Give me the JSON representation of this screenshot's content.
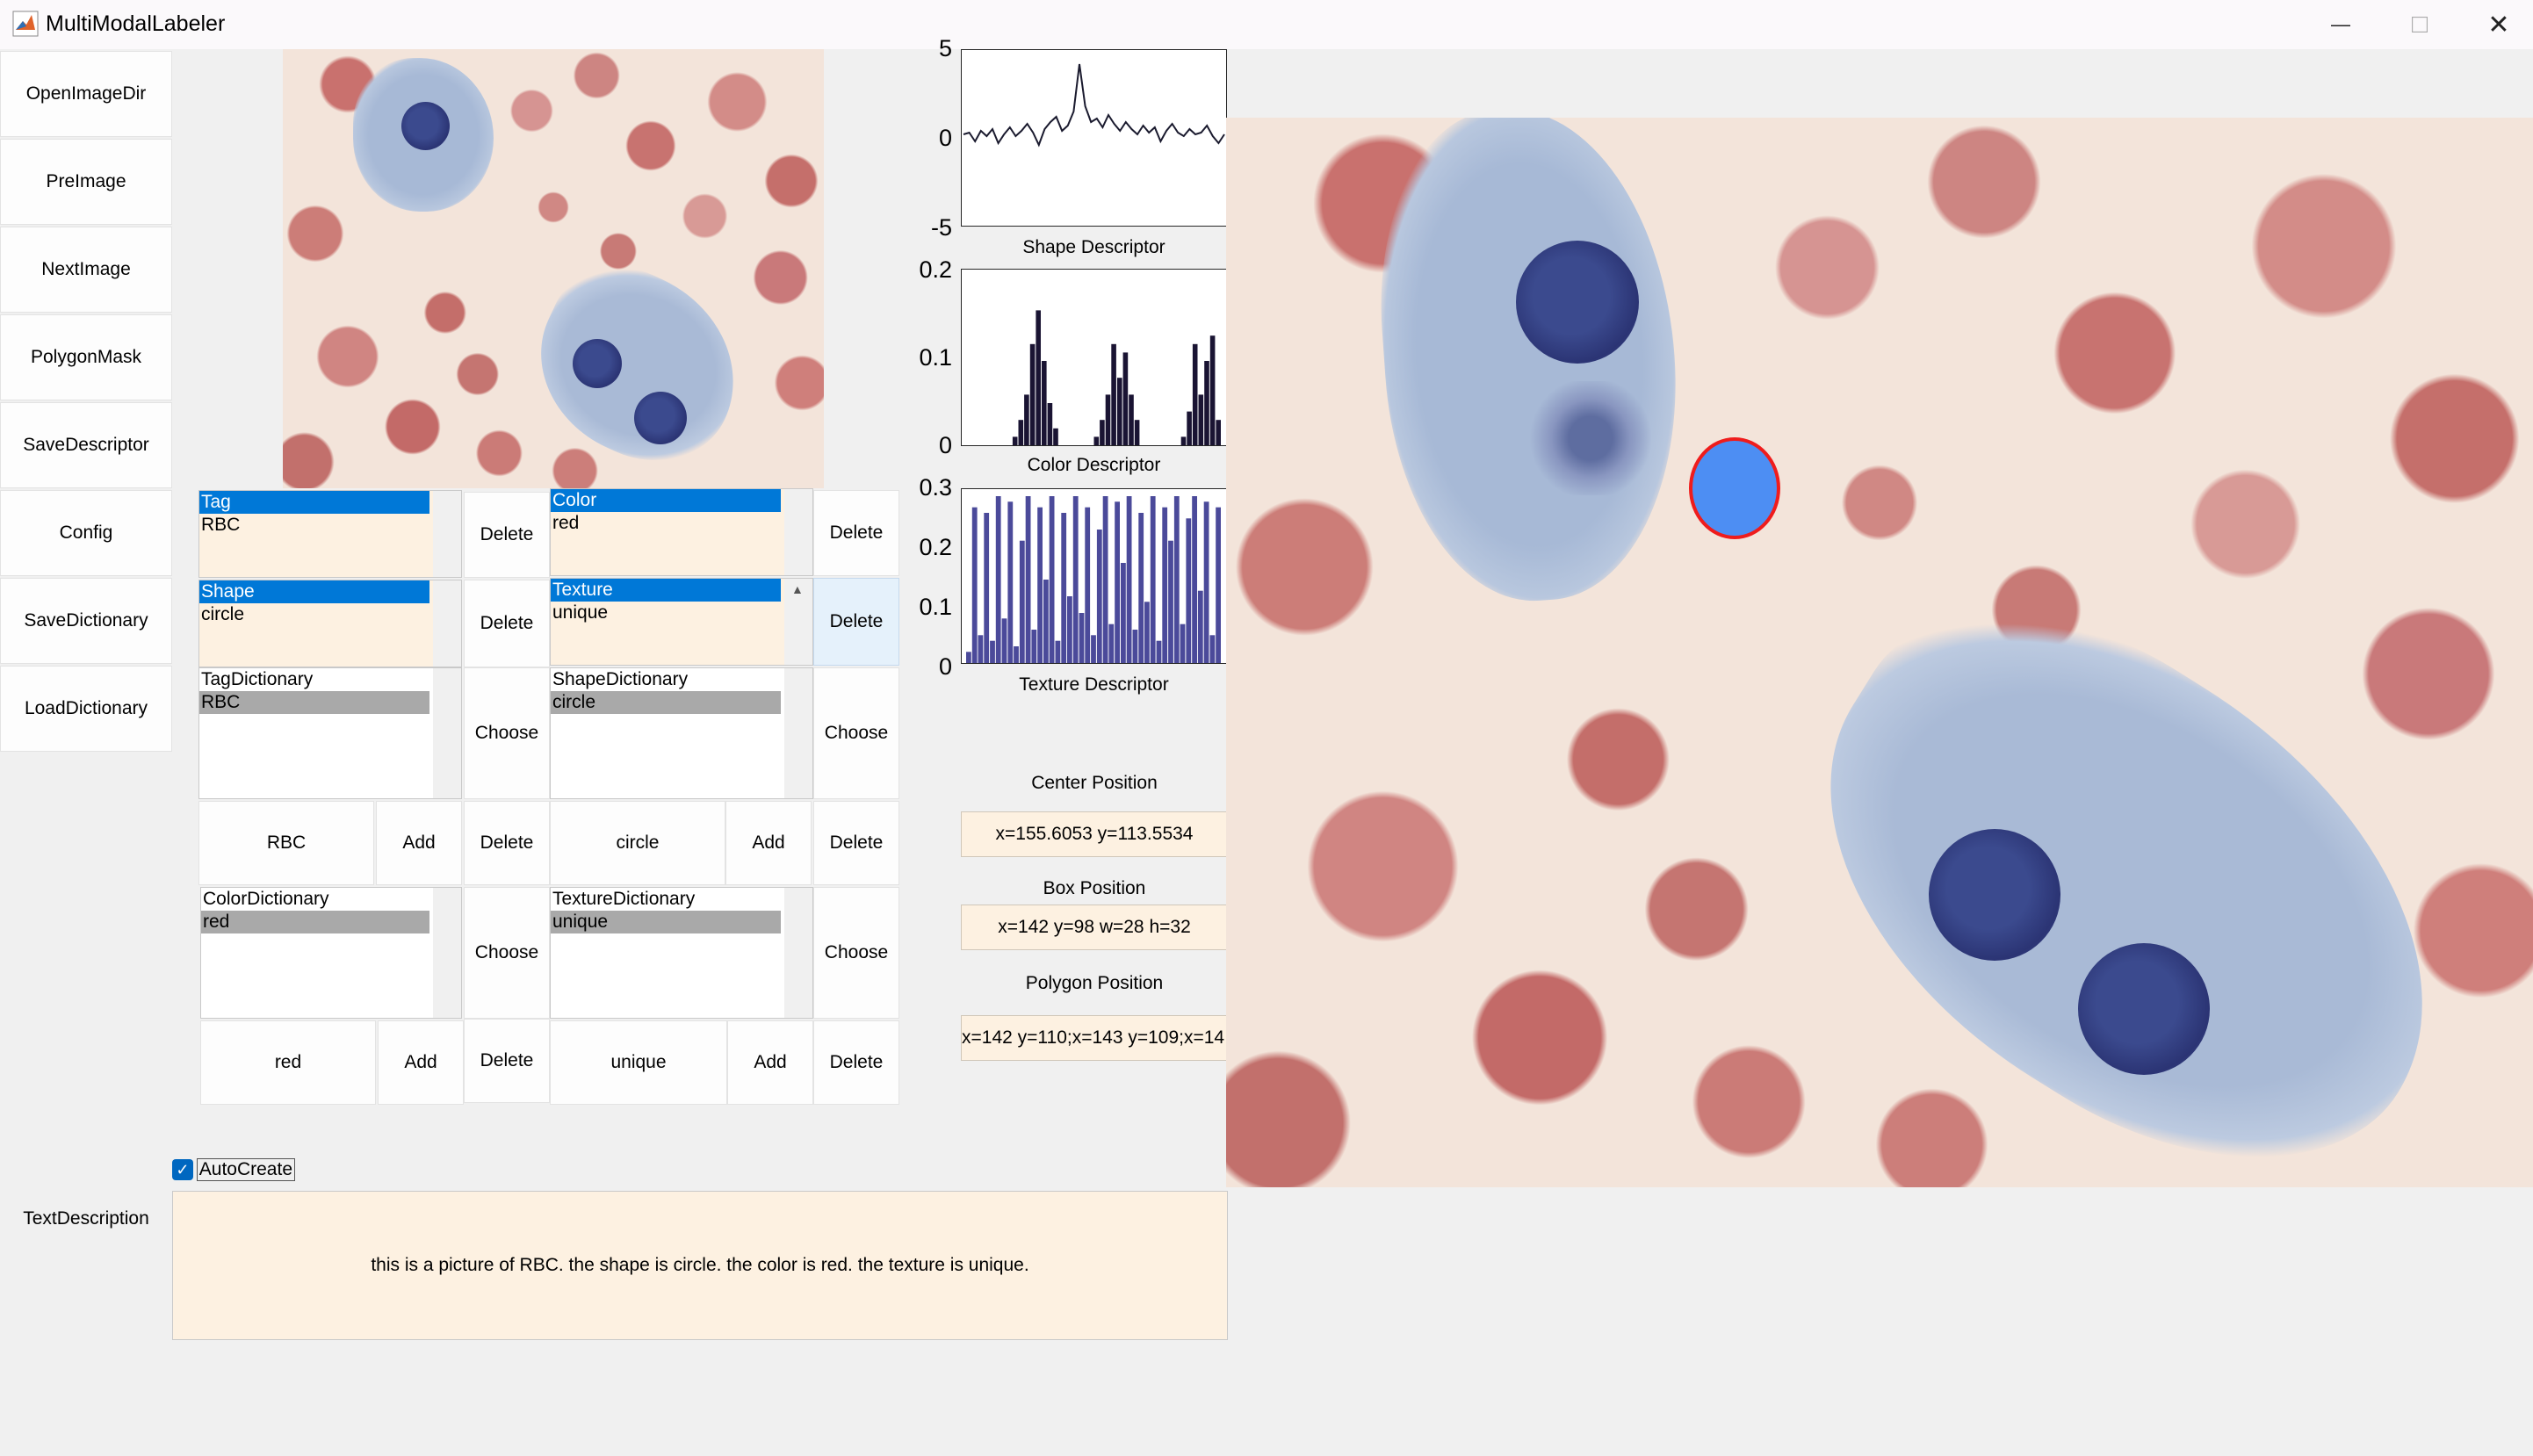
{
  "window": {
    "title": "MultiModalLabeler",
    "minimize_glyph": "—",
    "maximize_glyph": "□",
    "close_glyph": "✕",
    "icon": "matlab-icon"
  },
  "sidebar": {
    "items": [
      {
        "label": "OpenImageDir"
      },
      {
        "label": "PreImage"
      },
      {
        "label": "NextImage"
      },
      {
        "label": "PolygonMask"
      },
      {
        "label": "SaveDescriptor"
      },
      {
        "label": "Config"
      },
      {
        "label": "SaveDictionary"
      },
      {
        "label": "LoadDictionary"
      }
    ],
    "text_description_label": "TextDescription"
  },
  "current_labels": {
    "tag": {
      "header": "Tag",
      "value": "RBC"
    },
    "color": {
      "header": "Color",
      "value": "red"
    },
    "shape": {
      "header": "Shape",
      "value": "circle"
    },
    "texture": {
      "header": "Texture",
      "value": "unique"
    }
  },
  "dictionaries": {
    "tag": {
      "header": "TagDictionary",
      "items": [
        "RBC"
      ],
      "input": "RBC"
    },
    "shape": {
      "header": "ShapeDictionary",
      "items": [
        "circle"
      ],
      "input": "circle"
    },
    "color": {
      "header": "ColorDictionary",
      "items": [
        "red"
      ],
      "input": "red"
    },
    "texture": {
      "header": "TextureDictionary",
      "items": [
        "unique"
      ],
      "input": "unique"
    }
  },
  "buttons": {
    "delete": "Delete",
    "choose": "Choose",
    "add": "Add"
  },
  "autocreate": {
    "label": "AutoCreate",
    "checked": true
  },
  "text_description": "this is a picture of RBC.  the shape is circle.  the color is red.  the texture is unique.",
  "positions": {
    "center_label": "Center Position",
    "center_value": "x=155.6053 y=113.5534",
    "box_label": "Box Position",
    "box_value": "x=142 y=98 w=28 h=32",
    "polygon_label": "Polygon Position",
    "polygon_value": "x=142 y=110;x=143 y=109;x=14"
  },
  "chart_data": [
    {
      "type": "line",
      "xlabel": "Shape Descriptor",
      "ytick_labels": [
        "5",
        "0",
        "-5"
      ],
      "ylim": [
        -5,
        5
      ],
      "x_tick_partial": [
        "0"
      ],
      "values": [
        0.2,
        0.3,
        -0.2,
        0.4,
        0.1,
        0.5,
        -0.3,
        0.2,
        0.6,
        0.1,
        0.4,
        0.8,
        0.3,
        -0.4,
        0.5,
        0.9,
        1.2,
        0.4,
        0.7,
        1.5,
        4.2,
        1.8,
        0.9,
        1.1,
        0.6,
        1.3,
        0.8,
        0.4,
        0.9,
        0.5,
        0.2,
        0.7,
        0.3,
        0.6,
        -0.2,
        0.4,
        0.8,
        0.3,
        0.1,
        0.5,
        0.2,
        0.3,
        0.7,
        0.1,
        -0.3,
        0.2
      ]
    },
    {
      "type": "bar",
      "xlabel": "Color Descriptor",
      "ytick_labels": [
        "0.2",
        "0.1",
        "0"
      ],
      "ylim": [
        0,
        0.2
      ],
      "x_tick_partial": [
        "0",
        "00"
      ],
      "values": [
        0,
        0,
        0,
        0,
        0,
        0,
        0,
        0,
        0.01,
        0.03,
        0.06,
        0.12,
        0.16,
        0.1,
        0.05,
        0.02,
        0,
        0,
        0,
        0,
        0,
        0,
        0.01,
        0.03,
        0.06,
        0.12,
        0.08,
        0.11,
        0.06,
        0.03,
        0,
        0,
        0,
        0,
        0,
        0,
        0,
        0.01,
        0.04,
        0.12,
        0.06,
        0.1,
        0.13,
        0.03
      ]
    },
    {
      "type": "bar",
      "xlabel": "Texture Descriptor",
      "ytick_labels": [
        "0.3",
        "0.2",
        "0.1",
        "0"
      ],
      "ylim": [
        0,
        0.3
      ],
      "x_tick_partial": [
        "0",
        "00"
      ],
      "values": [
        0.02,
        0.28,
        0.05,
        0.27,
        0.04,
        0.3,
        0.08,
        0.29,
        0.03,
        0.22,
        0.3,
        0.06,
        0.28,
        0.15,
        0.3,
        0.04,
        0.27,
        0.12,
        0.3,
        0.09,
        0.28,
        0.05,
        0.24,
        0.3,
        0.07,
        0.29,
        0.18,
        0.3,
        0.06,
        0.27,
        0.11,
        0.3,
        0.04,
        0.28,
        0.22,
        0.3,
        0.07,
        0.26,
        0.3,
        0.13,
        0.29,
        0.05,
        0.28
      ]
    }
  ]
}
